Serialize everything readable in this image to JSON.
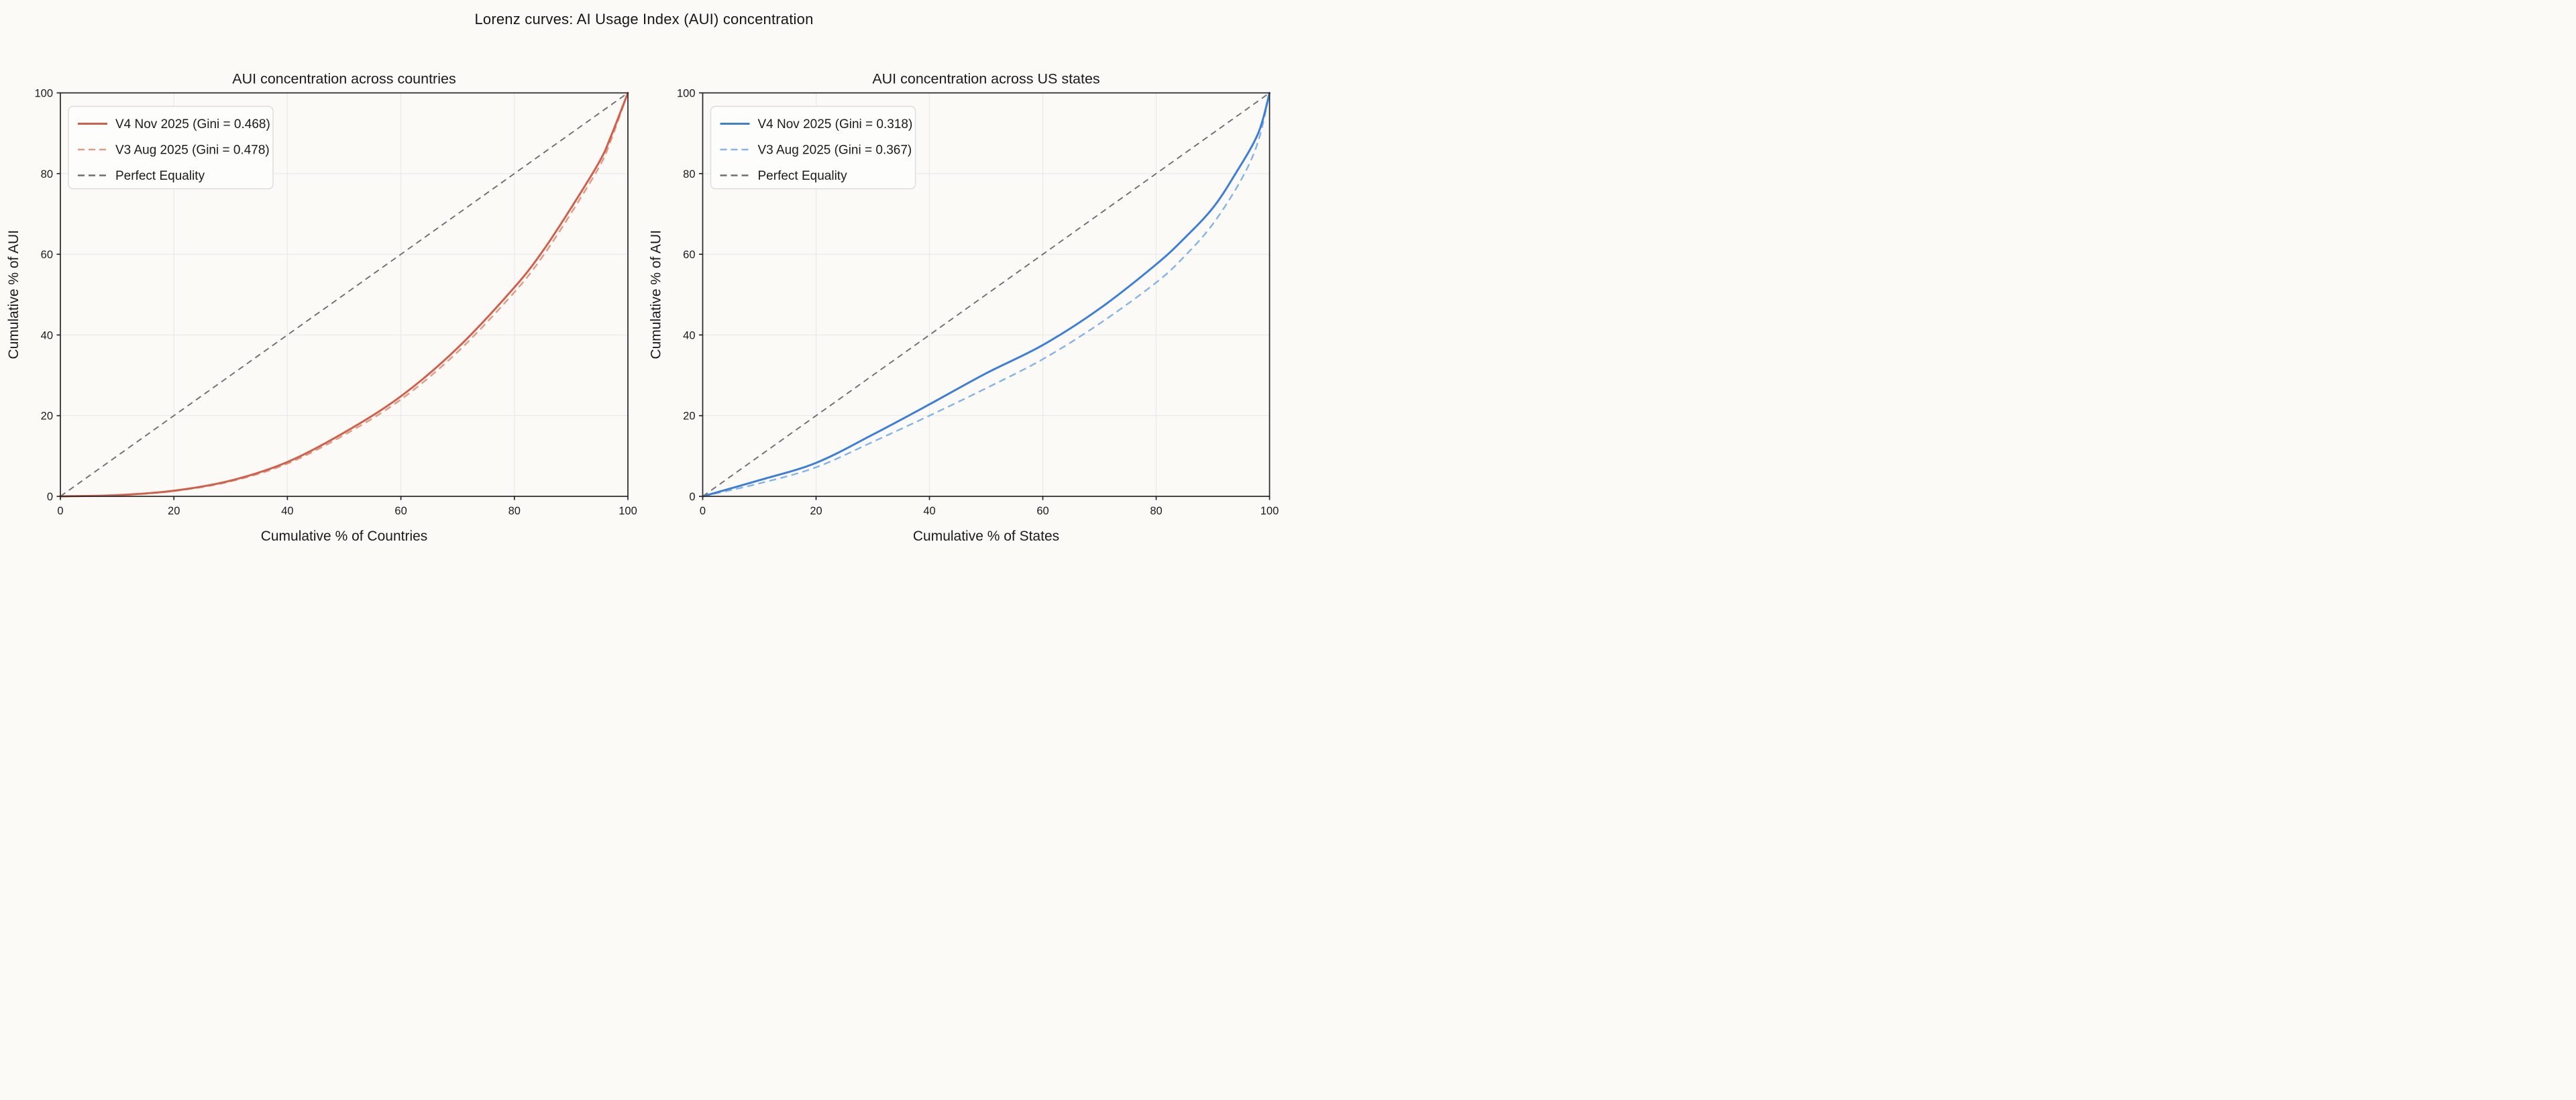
{
  "page": {
    "title": "Lorenz curves: AI Usage Index (AUI) concentration"
  },
  "colors": {
    "background": "#FBFAF7",
    "plot_background": "#FBFAF7",
    "spine": "#262626",
    "grid": "#E8E8E8",
    "text": "#161616",
    "tick_text": "#1f1f1f",
    "legend_fill": "#FDFDFB",
    "legend_border": "#DCDCDC",
    "equality_gray": "#6F6F6F",
    "v4_countries_orange": "#D1604A",
    "v3_countries_orange": "#E29A84",
    "v4_states_blue": "#3E7FD6",
    "v3_states_blue": "#84B3E9"
  },
  "chart_data": [
    {
      "type": "line",
      "title": "AUI concentration across countries",
      "xlabel": "Cumulative % of Countries",
      "ylabel": "Cumulative % of AUI",
      "xlim": [
        0,
        100
      ],
      "ylim": [
        0,
        100
      ],
      "xticks": [
        0,
        20,
        40,
        60,
        80,
        100
      ],
      "yticks": [
        0,
        20,
        40,
        60,
        80,
        100
      ],
      "grid": true,
      "legend_position": "upper left",
      "series": [
        {
          "name": "V4 Nov 2025 (Gini = 0.468)",
          "gini": 0.468,
          "style": "solid",
          "width": 3.0,
          "color": "#D1604A",
          "x": [
            0,
            10,
            20,
            30,
            40,
            50,
            60,
            70,
            80,
            85,
            90,
            95,
            97,
            100
          ],
          "y": [
            0,
            0.3,
            1.4,
            3.9,
            8.5,
            15.8,
            24.8,
            36.8,
            51.8,
            60.8,
            71.5,
            83.0,
            89.2,
            100
          ]
        },
        {
          "name": "V3 Aug 2025 (Gini = 0.478)",
          "gini": 0.478,
          "style": "dashed",
          "width": 2.4,
          "color": "#E29A84",
          "x": [
            0,
            10,
            20,
            30,
            40,
            50,
            60,
            70,
            80,
            85,
            90,
            95,
            97,
            100
          ],
          "y": [
            0,
            0.25,
            1.3,
            3.7,
            8.1,
            15.2,
            24.0,
            35.8,
            50.6,
            59.5,
            70.2,
            81.8,
            88.2,
            100
          ]
        },
        {
          "name": "Perfect Equality",
          "style": "dashed",
          "width": 1.9,
          "color": "#6F6F6F",
          "x": [
            0,
            100
          ],
          "y": [
            0,
            100
          ]
        }
      ]
    },
    {
      "type": "line",
      "title": "AUI concentration across US states",
      "xlabel": "Cumulative % of States",
      "ylabel": "Cumulative % of AUI",
      "xlim": [
        0,
        100
      ],
      "ylim": [
        0,
        100
      ],
      "xticks": [
        0,
        20,
        40,
        60,
        80,
        100
      ],
      "yticks": [
        0,
        20,
        40,
        60,
        80,
        100
      ],
      "grid": true,
      "legend_position": "upper left",
      "series": [
        {
          "name": "V4 Nov 2025 (Gini = 0.318)",
          "gini": 0.318,
          "style": "solid",
          "width": 3.0,
          "color": "#3E7FD6",
          "x": [
            0,
            10,
            20,
            30,
            40,
            50,
            60,
            70,
            80,
            85,
            90,
            94,
            98,
            100
          ],
          "y": [
            0,
            4.0,
            8.3,
            15.3,
            22.8,
            30.5,
            37.5,
            46.5,
            57.5,
            64.0,
            71.5,
            80.0,
            90.0,
            100
          ]
        },
        {
          "name": "V3 Aug 2025 (Gini = 0.367)",
          "gini": 0.367,
          "style": "dashed",
          "width": 2.4,
          "color": "#84B3E9",
          "x": [
            0,
            10,
            20,
            30,
            40,
            50,
            60,
            70,
            80,
            85,
            90,
            95,
            98,
            100
          ],
          "y": [
            0,
            3.2,
            7.2,
            13.5,
            20.0,
            26.8,
            34.0,
            42.8,
            53.0,
            59.5,
            67.5,
            78.5,
            88.0,
            100
          ]
        },
        {
          "name": "Perfect Equality",
          "style": "dashed",
          "width": 1.9,
          "color": "#6F6F6F",
          "x": [
            0,
            100
          ],
          "y": [
            0,
            100
          ]
        }
      ]
    }
  ]
}
